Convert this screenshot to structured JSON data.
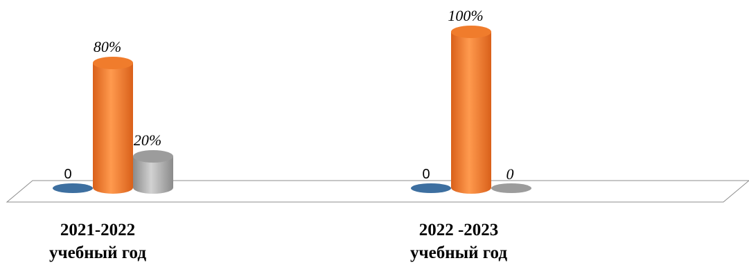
{
  "chart_data": {
    "type": "bar",
    "style": "3d-cylinder",
    "categories": [
      [
        "2021-2022",
        "учебный год"
      ],
      [
        "2022 -2023",
        "учебный год"
      ]
    ],
    "series": [
      {
        "values": [
          0,
          0
        ],
        "labels": [
          "0",
          "0"
        ],
        "color": "#3D6FA0"
      },
      {
        "values": [
          80,
          100
        ],
        "labels": [
          "80%",
          "100%"
        ],
        "color": "#F07C2C"
      },
      {
        "values": [
          20,
          0
        ],
        "labels": [
          "20%",
          "0"
        ],
        "color": "#9C9C9C"
      }
    ],
    "ylim": [
      0,
      100
    ],
    "legend": "none",
    "grid": false
  }
}
